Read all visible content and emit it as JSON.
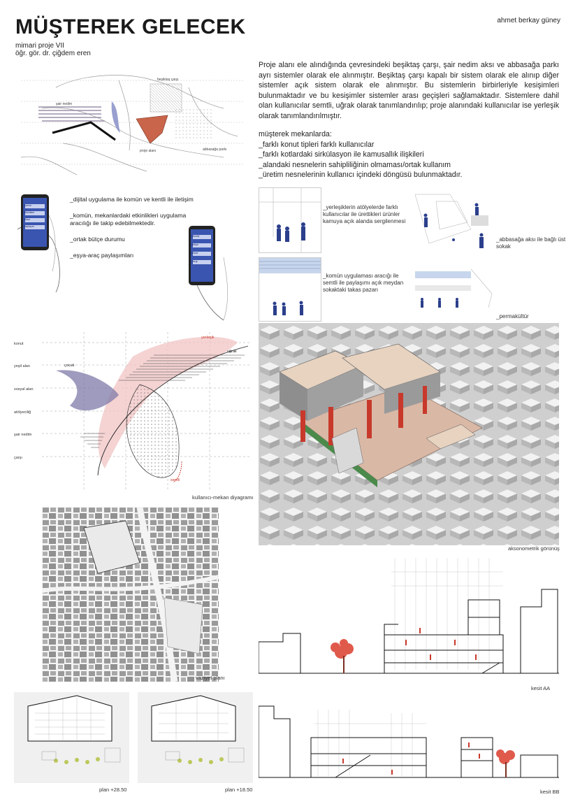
{
  "header": {
    "title": "MÜŞTEREK GELECEK",
    "course": "mimari proje VII",
    "instructor": "öğr. gör. dr. çiğdem eren",
    "author": "ahmet berkay güney"
  },
  "intro": {
    "paragraph": "Proje alanı ele alındığında çevresindeki beşiktaş çarşı, şair nedim aksı ve abbasağa parkı ayrı sistemler olarak ele alınmıştır. Beşiktaş çarşı kapalı bir sistem olarak ele alınıp diğer sistemler açık sistem olarak ele alınmıştır. Bu sistemlerin birbirleriyle kesişimleri bulunmaktadır ve bu kesişimler sistemler arası geçişleri sağlamaktadır. Sistemlere dahil olan kullanıcılar semtli, uğrak olarak tanımlandırılıp; proje alanındaki kullanıcılar ise yerleşik olarak tanımlandırılmıştır.",
    "list_title": "müşterek mekanlarda:",
    "list_items": [
      "_farklı konut tipleri farklı kullanıcılar",
      "_farklı kotlardaki sirkülasyon ile kamusallık ilişkileri",
      "_alandaki nesnelerin sahipliliğinin olmaması/ortak kullanım",
      "_üretim nesnelerinin kullanıcı içindeki döngüsü bulunmaktadır."
    ]
  },
  "app_section": {
    "bullets": [
      "_dijital uygulama ile komün ve kentli ile iletişim",
      "_komün, mekanlardaki etkinlikleri uygulama aracılığı ile takip edebilmektedir.",
      "_ortak bütçe durumu",
      "_eşya-araç paylaşımları"
    ],
    "phone1": [
      "Komün",
      "Etkinlikler",
      "Bütçe",
      "Paylaşım"
    ],
    "phone2": [
      "Etkinlik",
      "Atölye",
      "Pazar",
      "Sergi"
    ]
  },
  "vignettes": {
    "v1": "_yerleşiklerin atölyelerde farklı kullanıcılar ile ürettikleri ürünler kamuya açık alanda sergilenmesi",
    "v2": "_abbasağa aksı ile bağlı üst sokak",
    "v3": "_komün uygulaması aracığı ile semtli ile paylaşımı açık meydan sokaktaki takas pazarı",
    "v4": "_permakültür"
  },
  "diagram": {
    "rows": [
      "konut",
      "yeşil alan",
      "sosyal alan",
      "atölyeciliğ",
      "şair nedim",
      "çarşı"
    ],
    "labels": [
      "yerleşik",
      "uğrak",
      "çocuk",
      "semtli"
    ],
    "caption": "kullanıcı-mekan diyagramı"
  },
  "map_labels": [
    "beşiktaş çarşı",
    "şair nedim",
    "abbasağa parkı",
    "proje alanı"
  ],
  "captions": {
    "axonometric": "aksonometrik görünüş",
    "site_plan": "vaziyet planı",
    "section_aa": "kesit AA",
    "section_bb": "kesit BB",
    "plan1": "plan +28.50",
    "plan2": "plan +18.50"
  },
  "colors": {
    "text": "#1a1a1a",
    "accent_red": "#c8392b",
    "accent_blue": "#3c4f9a",
    "phone_blue": "#3a55b0",
    "pink": "#f2c4c4",
    "purple": "#7e7aa8"
  }
}
